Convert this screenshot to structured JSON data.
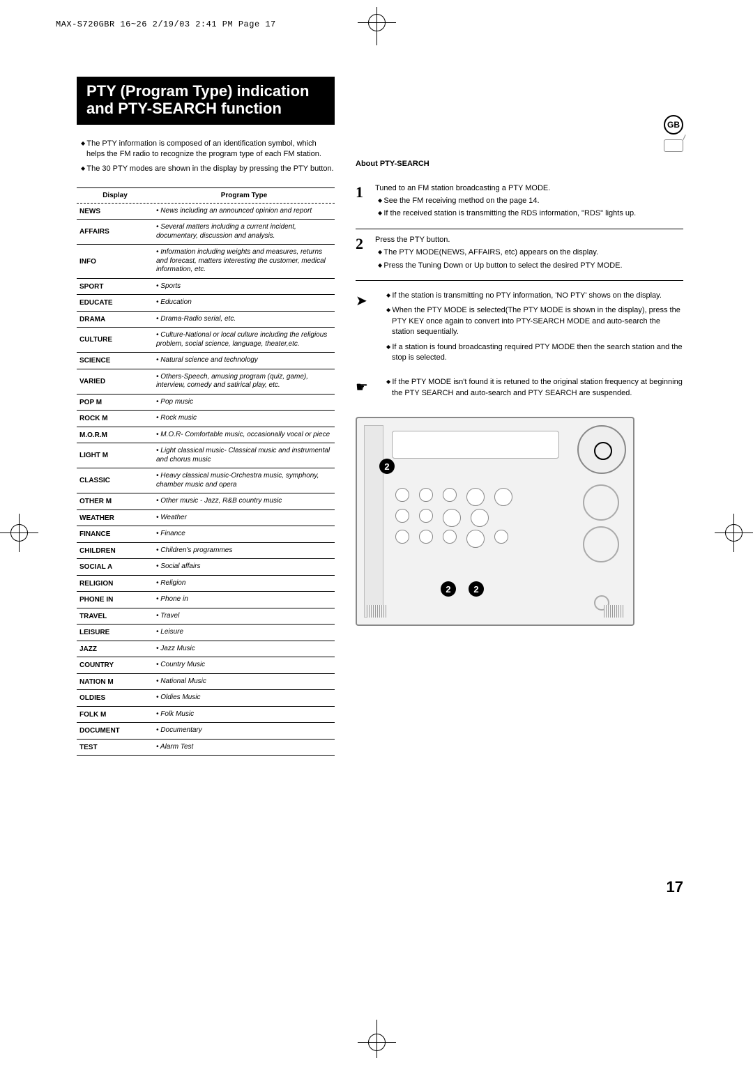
{
  "print_header": "MAX-S720GBR 16~26  2/19/03 2:41 PM  Page 17",
  "region_badge": "GB",
  "title": "PTY (Program Type) indication and PTY-SEARCH function",
  "intro": [
    "The PTY information is composed of an identification symbol, which helps the FM radio to recognize the program type of each FM station.",
    "The 30 PTY modes are shown in the display by pressing the PTY button."
  ],
  "table": {
    "head_display": "Display",
    "head_type": "Program Type",
    "rows": [
      {
        "d": "NEWS",
        "t": "• News including an announced opinion and report"
      },
      {
        "d": "AFFAIRS",
        "t": "• Several matters including a current incident, documentary, discussion and analysis."
      },
      {
        "d": "INFO",
        "t": "• Information including weights and measures, returns and forecast, matters interesting the customer, medical information, etc."
      },
      {
        "d": "SPORT",
        "t": "• Sports"
      },
      {
        "d": "EDUCATE",
        "t": "• Education"
      },
      {
        "d": "DRAMA",
        "t": "• Drama-Radio serial, etc."
      },
      {
        "d": "CULTURE",
        "t": "• Culture-National or local culture including the religious problem, social science, language, theater,etc."
      },
      {
        "d": "SCIENCE",
        "t": "• Natural science and technology"
      },
      {
        "d": "VARIED",
        "t": "• Others-Speech, amusing program (quiz, game), interview, comedy and satirical play, etc."
      },
      {
        "d": "POP M",
        "t": "• Pop music"
      },
      {
        "d": "ROCK M",
        "t": "• Rock music"
      },
      {
        "d": "M.O.R.M",
        "t": "• M.O.R- Comfortable music, occasionally vocal or piece"
      },
      {
        "d": "LIGHT M",
        "t": "• Light classical music- Classical music and instrumental and chorus music"
      },
      {
        "d": "CLASSIC",
        "t": "• Heavy classical  music-Orchestra music, symphony, chamber music and opera"
      },
      {
        "d": "OTHER M",
        "t": "• Other music - Jazz, R&B country music"
      },
      {
        "d": "WEATHER",
        "t": "• Weather"
      },
      {
        "d": "FINANCE",
        "t": "• Finance"
      },
      {
        "d": "CHILDREN",
        "t": "• Children's programmes"
      },
      {
        "d": "SOCIAL  A",
        "t": "• Social affairs"
      },
      {
        "d": "RELIGION",
        "t": "• Religion"
      },
      {
        "d": "PHONE IN",
        "t": "• Phone in"
      },
      {
        "d": "TRAVEL",
        "t": "• Travel"
      },
      {
        "d": "LEISURE",
        "t": "• Leisure"
      },
      {
        "d": "JAZZ",
        "t": "• Jazz Music"
      },
      {
        "d": "COUNTRY",
        "t": "• Country Music"
      },
      {
        "d": "NATION M",
        "t": "• National Music"
      },
      {
        "d": "OLDIES",
        "t": "• Oldies Music"
      },
      {
        "d": "FOLK M",
        "t": "• Folk Music"
      },
      {
        "d": "DOCUMENT",
        "t": "• Documentary"
      },
      {
        "d": "TEST",
        "t": "• Alarm Test"
      }
    ]
  },
  "right": {
    "heading": "About  PTY-SEARCH",
    "step1_num": "1",
    "step1_main": "Tuned to an FM station broadcasting a PTY MODE.",
    "step1_a": "See the FM receiving method on the page 14.",
    "step1_b": "If the received station is transmitting the RDS information, \"RDS\" lights up.",
    "step2_num": "2",
    "step2_main": "Press the PTY button.",
    "step2_a": "The PTY MODE(NEWS, AFFAIRS, etc) appears on the display.",
    "step2_b": "Press the Tuning Down or Up button to select the desired PTY MODE.",
    "note1_a": "If the station is transmitting no PTY information, 'NO PTY' shows on the display.",
    "note1_b": "When the PTY MODE is selected(The PTY MODE is shown in  the display), press the PTY KEY once again to convert into PTY-SEARCH MODE and auto-search the station sequentially.",
    "note1_c": "If a station is found broadcasting required PTY MODE then the search station and the stop is selected.",
    "note2_a": "If the PTY MODE isn't found it is retuned to the original station frequency at beginning the PTY SEARCH and auto-search and PTY SEARCH are suspended."
  },
  "callouts": {
    "a": "2",
    "b": "2",
    "c": "2"
  },
  "page_number": "17"
}
